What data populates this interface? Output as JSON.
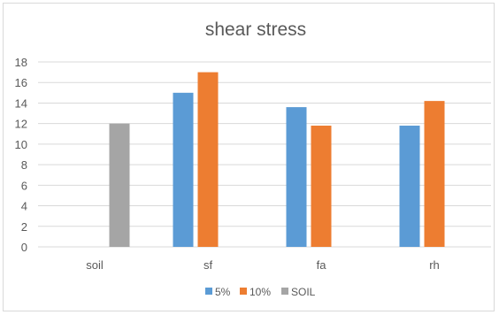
{
  "chart_data": {
    "type": "bar",
    "title": "shear stress",
    "categories": [
      "soil",
      "sf",
      "fa",
      "rh"
    ],
    "series": [
      {
        "name": "5%",
        "color": "#5b9bd5",
        "values": [
          null,
          15,
          13.6,
          11.8
        ]
      },
      {
        "name": "10%",
        "color": "#ed7d31",
        "values": [
          null,
          17,
          11.8,
          14.2
        ]
      },
      {
        "name": "SOIL",
        "color": "#a5a5a5",
        "values": [
          12,
          null,
          null,
          null
        ]
      }
    ],
    "ylim": [
      0,
      18
    ],
    "yticks": [
      "0",
      "2",
      "4",
      "6",
      "8",
      "10",
      "12",
      "14",
      "16",
      "18"
    ],
    "grid": true,
    "legend_position": "bottom",
    "xlabel": "",
    "ylabel": ""
  }
}
